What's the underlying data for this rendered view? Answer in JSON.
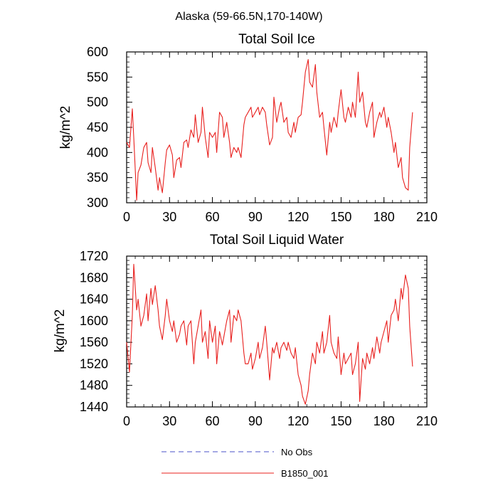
{
  "suptitle": "Alaska (59-66.5N,170-140W)",
  "chart_data": [
    {
      "type": "line",
      "title": "Total Soil Ice",
      "xlabel": "",
      "ylabel": "kg/m^2",
      "xlim": [
        0,
        210
      ],
      "ylim": [
        300,
        600
      ],
      "xticks": [
        0,
        30,
        60,
        90,
        120,
        150,
        180,
        210
      ],
      "yticks": [
        300,
        350,
        400,
        450,
        500,
        550,
        600
      ],
      "series": [
        {
          "name": "B1850_001",
          "color": "#e8201e",
          "x": [
            0,
            2,
            4,
            5,
            7,
            8,
            10,
            12,
            14,
            15,
            17,
            18,
            20,
            22,
            23,
            25,
            27,
            28,
            30,
            32,
            33,
            35,
            37,
            38,
            40,
            42,
            43,
            45,
            47,
            48,
            50,
            52,
            53,
            55,
            57,
            58,
            60,
            62,
            63,
            65,
            67,
            68,
            70,
            72,
            73,
            75,
            77,
            78,
            80,
            82,
            83,
            85,
            87,
            88,
            90,
            92,
            93,
            95,
            97,
            98,
            100,
            102,
            103,
            105,
            107,
            108,
            110,
            112,
            113,
            115,
            117,
            118,
            120,
            122,
            123,
            125,
            127,
            128,
            130,
            132,
            133,
            135,
            137,
            138,
            140,
            142,
            143,
            145,
            147,
            148,
            150,
            152,
            153,
            155,
            157,
            158,
            160,
            162,
            163,
            165,
            167,
            168,
            170,
            172,
            173,
            175,
            177,
            178,
            180,
            182,
            183,
            185,
            187,
            188,
            190,
            192,
            193,
            195,
            197,
            198,
            200
          ],
          "values": [
            420,
            410,
            487,
            430,
            305,
            360,
            375,
            410,
            420,
            380,
            360,
            410,
            370,
            325,
            350,
            320,
            380,
            405,
            415,
            395,
            350,
            385,
            390,
            370,
            420,
            425,
            410,
            445,
            430,
            475,
            420,
            440,
            490,
            430,
            390,
            440,
            430,
            440,
            400,
            480,
            470,
            430,
            460,
            420,
            390,
            410,
            400,
            410,
            390,
            455,
            470,
            480,
            490,
            470,
            480,
            490,
            475,
            490,
            480,
            455,
            415,
            430,
            510,
            460,
            490,
            500,
            460,
            470,
            440,
            430,
            460,
            440,
            470,
            475,
            500,
            560,
            585,
            540,
            530,
            575,
            520,
            470,
            480,
            450,
            395,
            460,
            440,
            470,
            450,
            480,
            525,
            470,
            460,
            490,
            470,
            500,
            470,
            560,
            500,
            520,
            460,
            450,
            480,
            500,
            430,
            460,
            480,
            470,
            490,
            450,
            470,
            440,
            400,
            420,
            370,
            390,
            350,
            330,
            325,
            410,
            480
          ]
        }
      ]
    },
    {
      "type": "line",
      "title": "Total Soil Liquid Water",
      "xlabel": "",
      "ylabel": "kg/m^2",
      "xlim": [
        0,
        210
      ],
      "ylim": [
        1440,
        1720
      ],
      "xticks": [
        0,
        30,
        60,
        90,
        120,
        150,
        180,
        210
      ],
      "yticks": [
        1440,
        1480,
        1520,
        1560,
        1600,
        1640,
        1680,
        1720
      ],
      "series": [
        {
          "name": "B1850_001",
          "color": "#e8201e",
          "x": [
            0,
            2,
            4,
            5,
            7,
            8,
            10,
            12,
            14,
            15,
            17,
            18,
            20,
            22,
            23,
            25,
            27,
            28,
            30,
            32,
            33,
            35,
            37,
            38,
            40,
            42,
            43,
            45,
            47,
            48,
            50,
            52,
            53,
            55,
            57,
            58,
            60,
            62,
            63,
            65,
            67,
            68,
            70,
            72,
            73,
            75,
            77,
            78,
            80,
            82,
            83,
            85,
            87,
            88,
            90,
            92,
            93,
            95,
            97,
            98,
            100,
            102,
            103,
            105,
            107,
            108,
            110,
            112,
            113,
            115,
            117,
            118,
            120,
            122,
            123,
            125,
            127,
            128,
            130,
            132,
            133,
            135,
            137,
            138,
            140,
            142,
            143,
            145,
            147,
            148,
            150,
            152,
            153,
            155,
            157,
            158,
            160,
            162,
            163,
            165,
            167,
            168,
            170,
            172,
            173,
            175,
            177,
            178,
            180,
            182,
            183,
            185,
            187,
            188,
            190,
            192,
            193,
            195,
            197,
            198,
            200
          ],
          "values": [
            1560,
            1505,
            1610,
            1705,
            1620,
            1640,
            1590,
            1610,
            1650,
            1600,
            1660,
            1630,
            1665,
            1620,
            1590,
            1565,
            1610,
            1640,
            1600,
            1580,
            1600,
            1560,
            1575,
            1590,
            1600,
            1555,
            1590,
            1600,
            1520,
            1560,
            1590,
            1620,
            1560,
            1580,
            1530,
            1600,
            1560,
            1590,
            1520,
            1580,
            1555,
            1570,
            1600,
            1620,
            1560,
            1610,
            1600,
            1620,
            1600,
            1540,
            1520,
            1520,
            1540,
            1510,
            1530,
            1560,
            1530,
            1550,
            1590,
            1560,
            1490,
            1550,
            1540,
            1560,
            1530,
            1550,
            1560,
            1545,
            1560,
            1540,
            1530,
            1550,
            1500,
            1480,
            1460,
            1445,
            1470,
            1500,
            1540,
            1520,
            1560,
            1540,
            1580,
            1540,
            1560,
            1610,
            1560,
            1540,
            1530,
            1570,
            1500,
            1540,
            1520,
            1530,
            1540,
            1500,
            1520,
            1560,
            1450,
            1530,
            1510,
            1540,
            1520,
            1550,
            1530,
            1570,
            1540,
            1560,
            1580,
            1600,
            1560,
            1610,
            1620,
            1640,
            1600,
            1660,
            1640,
            1685,
            1660,
            1590,
            1515
          ]
        }
      ]
    }
  ],
  "legend": [
    {
      "label": "No Obs",
      "color": "#4a52c8",
      "style": "dashed"
    },
    {
      "label": "B1850_001",
      "color": "#e8201e",
      "style": "solid"
    }
  ]
}
